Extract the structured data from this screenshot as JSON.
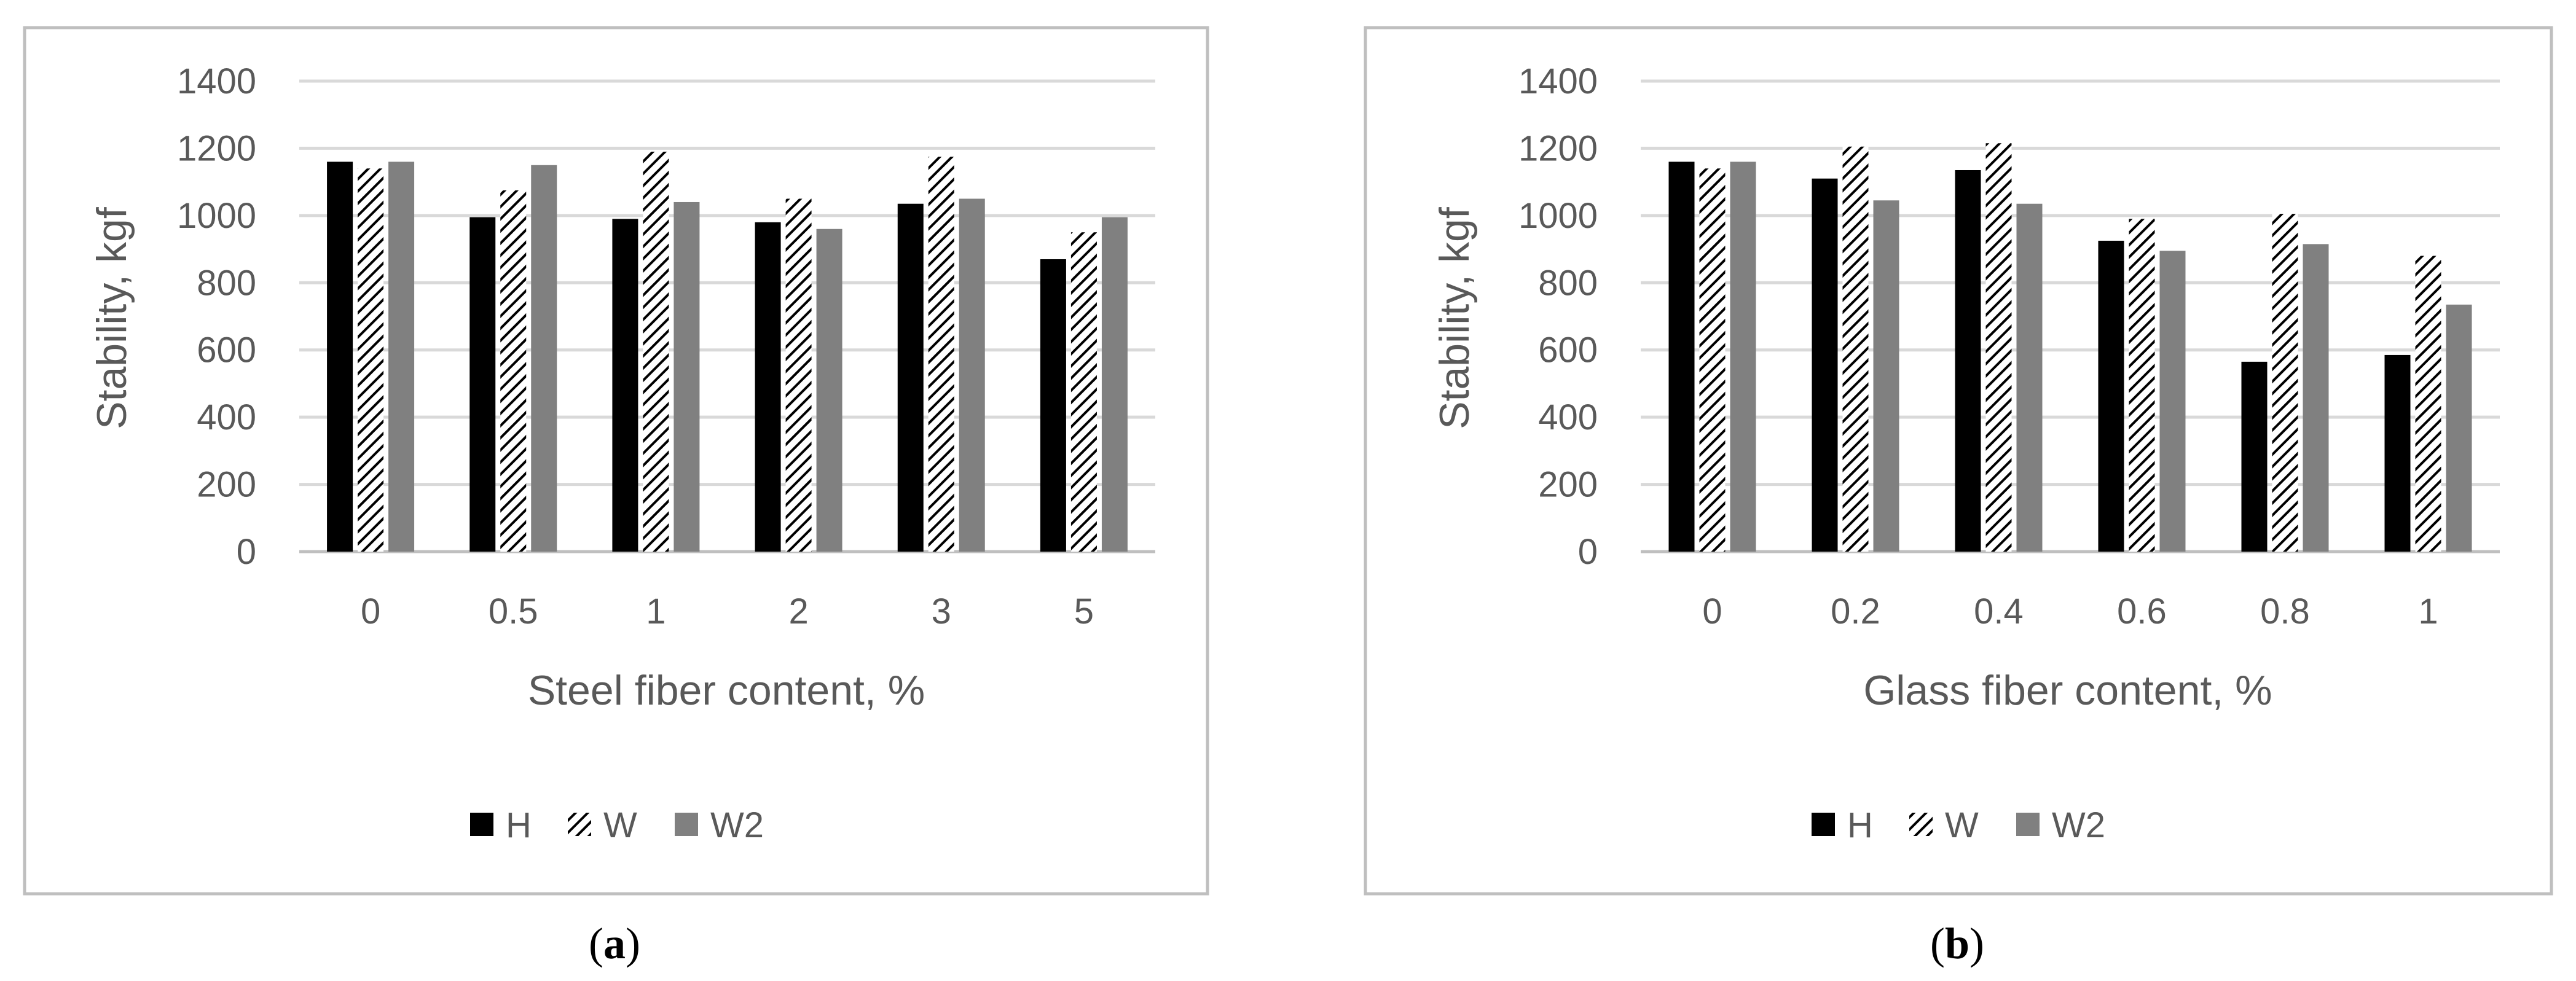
{
  "chart_data": [
    {
      "type": "bar",
      "caption_letter": "a",
      "categories": [
        "0",
        "0.5",
        "1",
        "2",
        "3",
        "5"
      ],
      "series": [
        {
          "name": "H",
          "values": [
            1160,
            995,
            990,
            980,
            1035,
            870
          ]
        },
        {
          "name": "W",
          "values": [
            1140,
            1075,
            1190,
            1050,
            1175,
            950
          ]
        },
        {
          "name": "W2",
          "values": [
            1160,
            1150,
            1040,
            960,
            1050,
            995
          ]
        }
      ],
      "xlabel": "Steel fiber content, %",
      "ylabel": "Stability, kgf",
      "ylim": [
        0,
        1400
      ],
      "yticks": [
        "0",
        "200",
        "400",
        "600",
        "800",
        "1000",
        "1200",
        "1400"
      ],
      "grid": true,
      "legend_position": "bottom"
    },
    {
      "type": "bar",
      "caption_letter": "b",
      "categories": [
        "0",
        "0.2",
        "0.4",
        "0.6",
        "0.8",
        "1"
      ],
      "series": [
        {
          "name": "H",
          "values": [
            1160,
            1110,
            1135,
            925,
            565,
            585
          ]
        },
        {
          "name": "W",
          "values": [
            1140,
            1205,
            1215,
            990,
            1005,
            880
          ]
        },
        {
          "name": "W2",
          "values": [
            1160,
            1045,
            1035,
            895,
            915,
            735
          ]
        }
      ],
      "xlabel": "Glass fiber content, %",
      "ylabel": "Stability, kgf",
      "ylim": [
        0,
        1400
      ],
      "yticks": [
        "0",
        "200",
        "400",
        "600",
        "800",
        "1000",
        "1200",
        "1400"
      ],
      "grid": true,
      "legend_position": "bottom"
    }
  ],
  "colors": {
    "H": "#000000",
    "W": "#000000",
    "W2": "#808080",
    "grid": "#d9d9d9",
    "frame": "#bfbfbf",
    "text": "#595959"
  }
}
